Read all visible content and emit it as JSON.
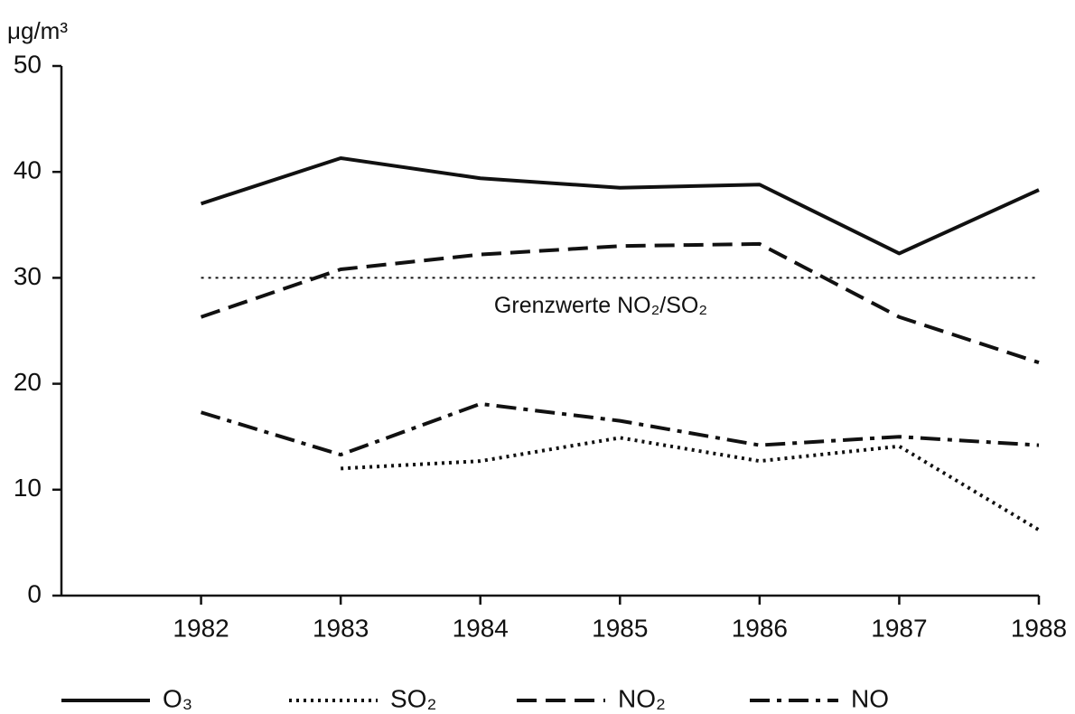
{
  "chart_data": {
    "type": "line",
    "y_label": "μg/m³",
    "x": [
      1982,
      1983,
      1984,
      1985,
      1986,
      1987,
      1988
    ],
    "xlim": [
      1981,
      1988
    ],
    "xticks": [
      1982,
      1983,
      1984,
      1985,
      1986,
      1987,
      1988
    ],
    "ylim": [
      0,
      50
    ],
    "yticks": [
      0,
      10,
      20,
      30,
      40,
      50
    ],
    "reference_line": {
      "value": 30,
      "label": "Grenzwerte NO₂/SO₂",
      "style": "dotted"
    },
    "series": [
      {
        "name": "O₃",
        "color": "#111111",
        "style": "solid",
        "values": [
          37.0,
          41.3,
          39.4,
          38.5,
          38.8,
          32.3,
          38.3
        ]
      },
      {
        "name": "SO₂",
        "color": "#111111",
        "style": "dotted",
        "values": [
          null,
          12.0,
          12.7,
          14.9,
          12.7,
          14.1,
          6.2
        ]
      },
      {
        "name": "NO₂",
        "color": "#111111",
        "style": "dashed",
        "values": [
          26.3,
          30.8,
          32.2,
          33.0,
          33.2,
          26.3,
          22.0
        ]
      },
      {
        "name": "NO",
        "color": "#111111",
        "style": "dashdot",
        "values": [
          17.3,
          13.3,
          18.1,
          16.5,
          14.2,
          15.0,
          14.2
        ]
      }
    ]
  }
}
